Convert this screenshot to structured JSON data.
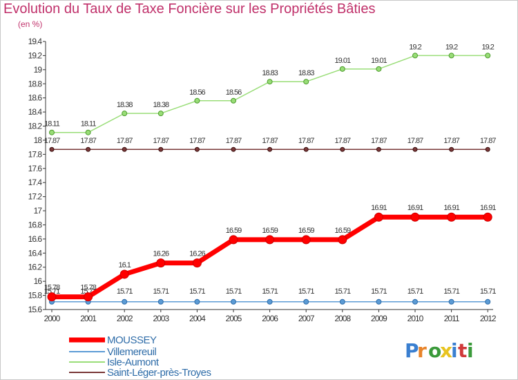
{
  "chart_data": {
    "type": "line",
    "title": "Evolution du Taux de Taxe Foncière sur les Propriétés Bâties",
    "unit_label": "(en %)",
    "xlabel": "",
    "ylabel": "",
    "x": [
      "2000",
      "2001",
      "2002",
      "2003",
      "2004",
      "2005",
      "2006",
      "2007",
      "2008",
      "2009",
      "2010",
      "2011",
      "2012"
    ],
    "ylim": [
      15.6,
      19.4
    ],
    "yticks": [
      "15.6",
      "15.8",
      "16",
      "16.2",
      "16.4",
      "16.6",
      "16.8",
      "17",
      "17.2",
      "17.4",
      "17.6",
      "17.8",
      "18",
      "18.2",
      "18.4",
      "18.6",
      "18.8",
      "19",
      "19.2",
      "19.4"
    ],
    "grid": false,
    "legend_position": "bottom-left",
    "series": [
      {
        "name": "MOUSSEY",
        "color": "#ff0000",
        "values": [
          15.78,
          15.78,
          16.1,
          16.26,
          16.26,
          16.59,
          16.59,
          16.59,
          16.59,
          16.91,
          16.91,
          16.91,
          16.91
        ],
        "labels": [
          "15.78",
          "15.78",
          "16.1",
          "16.26",
          "16.26",
          "16.59",
          "16.59",
          "16.59",
          "16.59",
          "16.91",
          "16.91",
          "16.91",
          "16.91"
        ]
      },
      {
        "name": "Villemereuil",
        "color": "#5b9bd5",
        "values": [
          15.71,
          15.71,
          15.71,
          15.71,
          15.71,
          15.71,
          15.71,
          15.71,
          15.71,
          15.71,
          15.71,
          15.71,
          15.71
        ],
        "labels": [
          "15.71",
          "15.71",
          "15.71",
          "15.71",
          "15.71",
          "15.71",
          "15.71",
          "15.71",
          "15.71",
          "15.71",
          "15.71",
          "15.71",
          "15.71"
        ]
      },
      {
        "name": "Isle-Aumont",
        "color": "#99dd77",
        "values": [
          18.11,
          18.11,
          18.38,
          18.38,
          18.56,
          18.56,
          18.83,
          18.83,
          19.01,
          19.01,
          19.2,
          19.2,
          19.2
        ],
        "labels": [
          "18.11",
          "18.11",
          "18.38",
          "18.38",
          "18.56",
          "18.56",
          "18.83",
          "18.83",
          "19.01",
          "19.01",
          "19.2",
          "19.2",
          "19.2"
        ]
      },
      {
        "name": "Saint-Léger-près-Troyes",
        "color": "#7a3838",
        "values": [
          17.87,
          17.87,
          17.87,
          17.87,
          17.87,
          17.87,
          17.87,
          17.87,
          17.87,
          17.87,
          17.87,
          17.87,
          17.87
        ],
        "labels": [
          "17.87",
          "17.87",
          "17.87",
          "17.87",
          "17.87",
          "17.87",
          "17.87",
          "17.87",
          "17.87",
          "17.87",
          "17.87",
          "17.87",
          "17.87"
        ]
      }
    ]
  },
  "logo": {
    "text": "Proxiti",
    "colors": [
      "#3a7fd0",
      "#e8842a",
      "#3a9a3a",
      "#e8c420",
      "#3a7fd0",
      "#d03a3a",
      "#3a9a3a"
    ]
  }
}
